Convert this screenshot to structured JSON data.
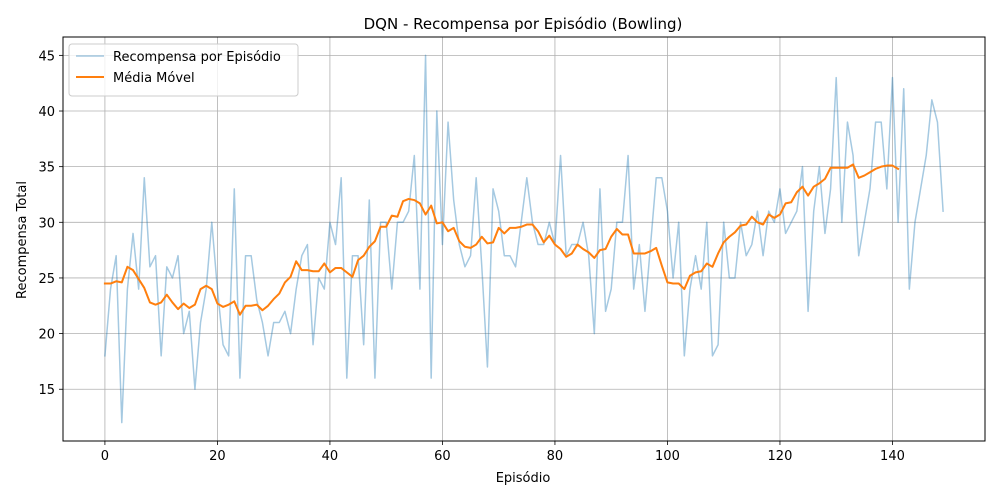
{
  "chart_data": {
    "type": "line",
    "title": "DQN - Recompensa por Episódio (Bowling)",
    "xlabel": "Episódio",
    "ylabel": "Recompensa Total",
    "xlim": [
      -7.45,
      156.45
    ],
    "ylim": [
      10.35,
      46.65
    ],
    "xticks": [
      0,
      20,
      40,
      60,
      80,
      100,
      120,
      140
    ],
    "yticks": [
      15,
      20,
      25,
      30,
      35,
      40,
      45
    ],
    "grid": true,
    "legend_position": "top-left",
    "series": [
      {
        "name": "Recompensa por Episódio",
        "color": "#1f77b4",
        "opacity": 0.4,
        "line_width": 1.5,
        "x_start": 0,
        "values": [
          18,
          24,
          27,
          12,
          24,
          29,
          24,
          34,
          26,
          27,
          18,
          26,
          25,
          27,
          20,
          22,
          15,
          21,
          24,
          30,
          24,
          19,
          18,
          33,
          16,
          27,
          27,
          23,
          21,
          18,
          21,
          21,
          22,
          20,
          24,
          27,
          28,
          19,
          25,
          24,
          30,
          28,
          34,
          16,
          27,
          27,
          19,
          32,
          16,
          30,
          30,
          24,
          30,
          30,
          31,
          36,
          24,
          45,
          16,
          40,
          28,
          39,
          32,
          28,
          26,
          27,
          34,
          26,
          17,
          33,
          31,
          27,
          27,
          26,
          30,
          34,
          30,
          28,
          28,
          30,
          28,
          36,
          27,
          28,
          28,
          30,
          27,
          20,
          33,
          22,
          24,
          30,
          30,
          36,
          24,
          28,
          22,
          28,
          34,
          34,
          31,
          25,
          30,
          18,
          24,
          27,
          24,
          30,
          18,
          19,
          30,
          25,
          25,
          30,
          27,
          28,
          31,
          27,
          31,
          30,
          33,
          29,
          30,
          31,
          35,
          22,
          31,
          35,
          29,
          33,
          43,
          30,
          39,
          36,
          27,
          30,
          33,
          39,
          39,
          33,
          43,
          30,
          42,
          24,
          30,
          33,
          36,
          41,
          39,
          31
        ]
      },
      {
        "name": "Média Móvel",
        "color": "#ff7f0e",
        "opacity": 1,
        "line_width": 2,
        "x_start": 0,
        "values": [
          24.5,
          24.5,
          24.7,
          24.6,
          26.0,
          25.7,
          24.9,
          24.1,
          22.8,
          22.6,
          22.8,
          23.5,
          22.8,
          22.2,
          22.7,
          22.3,
          22.6,
          24.0,
          24.3,
          24.0,
          22.7,
          22.4,
          22.6,
          22.9,
          21.7,
          22.5,
          22.5,
          22.6,
          22.1,
          22.5,
          23.1,
          23.6,
          24.6,
          25.1,
          26.5,
          25.7,
          25.7,
          25.6,
          25.6,
          26.3,
          25.5,
          25.9,
          25.9,
          25.5,
          25.1,
          26.6,
          27.0,
          27.8,
          28.3,
          29.6,
          29.6,
          30.6,
          30.5,
          31.9,
          32.1,
          32.0,
          31.7,
          30.7,
          31.5,
          29.9,
          30.0,
          29.2,
          29.5,
          28.3,
          27.8,
          27.7,
          28.0,
          28.7,
          28.1,
          28.2,
          29.5,
          29.0,
          29.5,
          29.5,
          29.6,
          29.8,
          29.8,
          29.2,
          28.2,
          28.8,
          28.0,
          27.6,
          26.9,
          27.2,
          28.0,
          27.6,
          27.3,
          26.8,
          27.5,
          27.6,
          28.7,
          29.4,
          28.9,
          28.9,
          27.2,
          27.2,
          27.2,
          27.4,
          27.7,
          26.1,
          24.6,
          24.5,
          24.5,
          24.0,
          25.2,
          25.5,
          25.6,
          26.3,
          26.0,
          27.2,
          28.2,
          28.7,
          29.1,
          29.7,
          29.8,
          30.5,
          30.0,
          29.8,
          30.7,
          30.4,
          30.7,
          31.7,
          31.8,
          32.7,
          33.2,
          32.4,
          33.2,
          33.5,
          33.9,
          34.9,
          34.9,
          34.9,
          34.9,
          35.2,
          34.0,
          34.2,
          34.5,
          34.8,
          35.0,
          35.1,
          35.1,
          34.8
        ]
      }
    ]
  }
}
